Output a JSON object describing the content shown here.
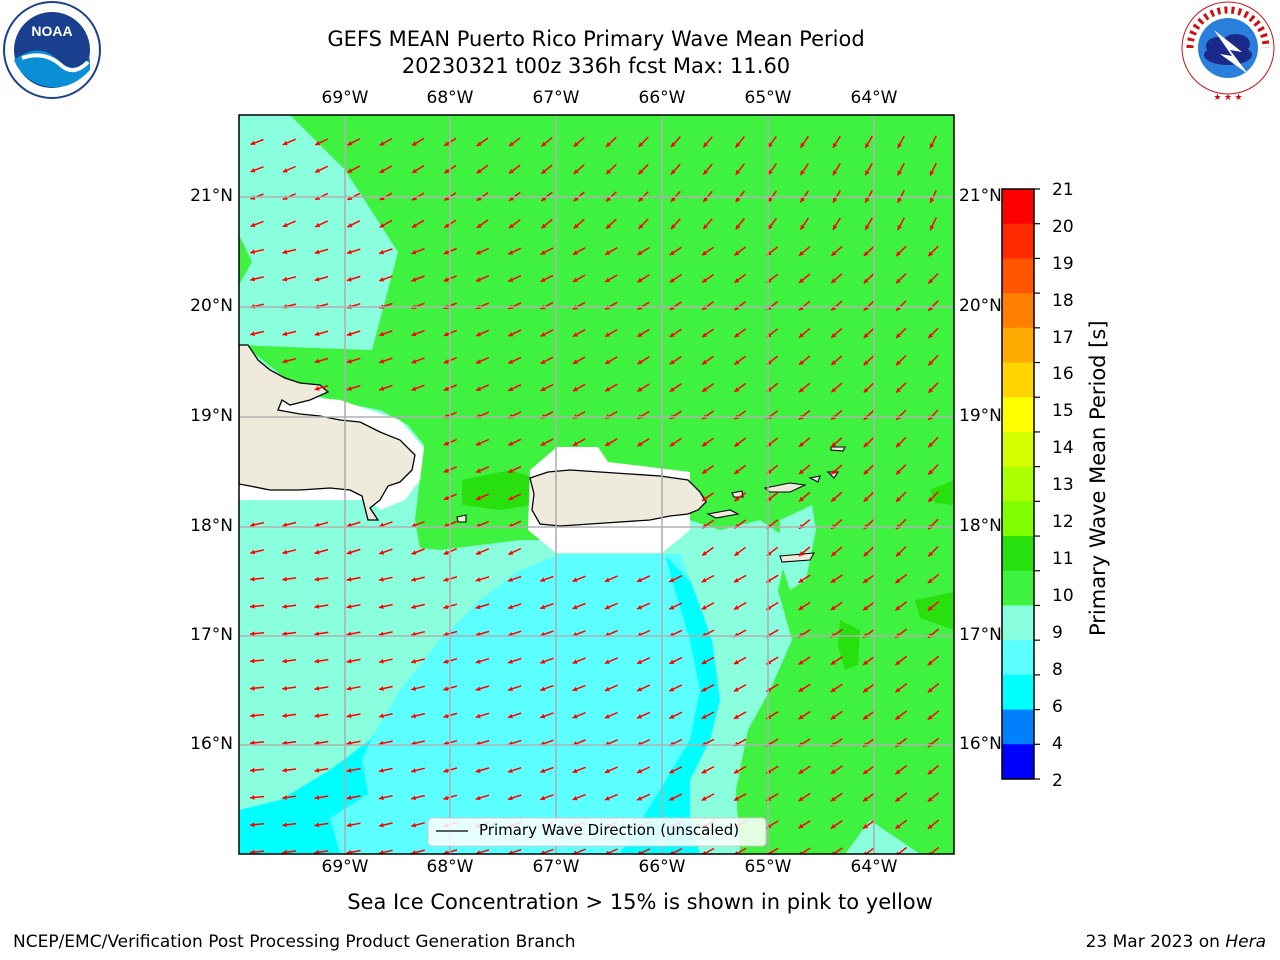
{
  "header": {
    "title": "GEFS MEAN Puerto Rico Primary Wave Mean Period",
    "subtitle": "20230321 t00z 336h fcst   Max: 11.60"
  },
  "logos": {
    "noaa_text": "NOAA",
    "noaa_ring": "NATIONAL OCEANIC AND ATMOSPHERIC ADMINISTRATION · U.S. DEPARTMENT OF COMMERCE",
    "nws_ring": "NATIONAL WEATHER SERVICE"
  },
  "map": {
    "lon_labels": [
      "69°W",
      "68°W",
      "67°W",
      "66°W",
      "65°W",
      "64°W"
    ],
    "lat_labels": [
      "21°N",
      "20°N",
      "19°N",
      "18°N",
      "17°N",
      "16°N"
    ],
    "legend_label": "Primary Wave Direction (unscaled)",
    "colors": {
      "land": "#efebdc",
      "band_10_11": "#3ff23f",
      "band_11_12": "#27e00d",
      "band_9_10": "#8affdd",
      "band_8_9": "#5cffff",
      "band_6_8": "#00ffff",
      "arrow": "#ff0000"
    }
  },
  "colorbar": {
    "label": "Primary Wave Mean Period [s]",
    "ticks": [
      "21",
      "20",
      "19",
      "18",
      "17",
      "16",
      "15",
      "14",
      "13",
      "12",
      "11",
      "10",
      "9",
      "8",
      "6",
      "4",
      "2"
    ],
    "colors": [
      "#ff0000",
      "#ff2a00",
      "#ff5500",
      "#ff8000",
      "#ffaa00",
      "#ffd400",
      "#ffff00",
      "#d4ff00",
      "#aaff00",
      "#7fff00",
      "#27e00d",
      "#3ff23f",
      "#8affdd",
      "#5cffff",
      "#00ffff",
      "#0080ff",
      "#0000ff"
    ]
  },
  "note": "Sea Ice Concentration > 15% is shown in pink to yellow",
  "footer": {
    "left": "NCEP/EMC/Verification Post Processing Product Generation Branch",
    "right_prefix": "23 Mar 2023 on ",
    "right_host": "Hera"
  }
}
